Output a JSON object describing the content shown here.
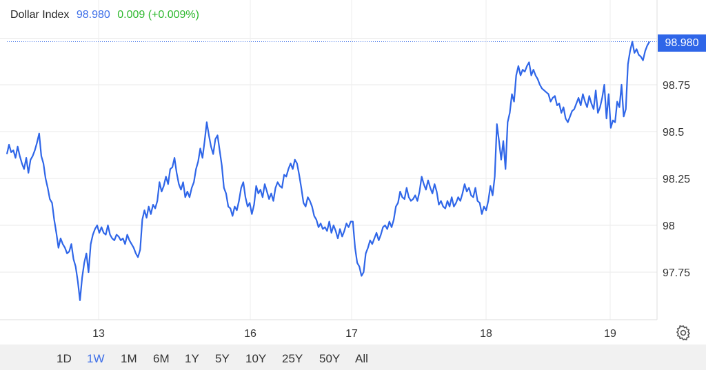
{
  "header": {
    "name": "Dollar Index",
    "value": "98.980",
    "change": "0.009 (+0.009%)"
  },
  "price_tag": "98.980",
  "colors": {
    "line": "#2f66e8",
    "up": "#2eb82e",
    "grid": "#e6e6e6"
  },
  "range_buttons": [
    {
      "label": "1D",
      "active": false
    },
    {
      "label": "1W",
      "active": true
    },
    {
      "label": "1M",
      "active": false
    },
    {
      "label": "6M",
      "active": false
    },
    {
      "label": "1Y",
      "active": false
    },
    {
      "label": "5Y",
      "active": false
    },
    {
      "label": "10Y",
      "active": false
    },
    {
      "label": "25Y",
      "active": false
    },
    {
      "label": "50Y",
      "active": false
    },
    {
      "label": "All",
      "active": false
    }
  ],
  "icons": {
    "settings": "gear-icon"
  },
  "chart_data": {
    "type": "line",
    "title": "",
    "xlabel": "",
    "ylabel": "",
    "x_ticks": [
      "13",
      "16",
      "17",
      "18",
      "19"
    ],
    "y_ticks": [
      97.75,
      98,
      98.25,
      98.5,
      98.75
    ],
    "ylim": [
      97.5,
      99.0
    ],
    "grid": true,
    "current_value": 98.98,
    "series": [
      {
        "values": [
          98.38,
          98.43,
          98.39,
          98.4,
          98.36,
          98.42,
          98.37,
          98.33,
          98.3,
          98.36,
          98.28,
          98.35,
          98.37,
          98.4,
          98.44,
          98.49,
          98.37,
          98.33,
          98.25,
          98.2,
          98.14,
          98.12,
          98.03,
          97.96,
          97.88,
          97.93,
          97.9,
          97.88,
          97.85,
          97.86,
          97.9,
          97.82,
          97.78,
          97.7,
          97.6,
          97.72,
          97.8,
          97.85,
          97.75,
          97.9,
          97.95,
          97.98,
          98.0,
          97.96,
          97.99,
          97.96,
          97.95,
          98.0,
          97.95,
          97.93,
          97.92,
          97.95,
          97.94,
          97.92,
          97.93,
          97.9,
          97.95,
          97.92,
          97.9,
          97.88,
          97.85,
          97.83,
          97.87,
          98.03,
          98.08,
          98.04,
          98.1,
          98.06,
          98.11,
          98.09,
          98.13,
          98.23,
          98.18,
          98.21,
          98.26,
          98.22,
          98.3,
          98.31,
          98.36,
          98.28,
          98.22,
          98.19,
          98.23,
          98.15,
          98.18,
          98.15,
          98.2,
          98.23,
          98.3,
          98.34,
          98.41,
          98.36,
          98.45,
          98.55,
          98.48,
          98.42,
          98.38,
          98.46,
          98.48,
          98.4,
          98.32,
          98.2,
          98.17,
          98.1,
          98.09,
          98.05,
          98.1,
          98.08,
          98.13,
          98.2,
          98.23,
          98.15,
          98.1,
          98.12,
          98.06,
          98.11,
          98.21,
          98.17,
          98.19,
          98.15,
          98.22,
          98.18,
          98.14,
          98.17,
          98.13,
          98.2,
          98.23,
          98.21,
          98.2,
          98.27,
          98.26,
          98.3,
          98.33,
          98.3,
          98.35,
          98.33,
          98.27,
          98.2,
          98.12,
          98.1,
          98.15,
          98.13,
          98.1,
          98.05,
          98.03,
          97.99,
          98.01,
          97.98,
          97.99,
          97.97,
          98.02,
          97.96,
          98.0,
          97.97,
          97.93,
          97.98,
          97.94,
          97.97,
          98.01,
          97.99,
          98.02,
          98.02,
          97.88,
          97.8,
          97.78,
          97.73,
          97.75,
          97.85,
          97.88,
          97.92,
          97.9,
          97.93,
          97.96,
          97.92,
          97.95,
          97.99,
          98.0,
          97.98,
          98.02,
          97.99,
          98.03,
          98.1,
          98.12,
          98.18,
          98.15,
          98.14,
          98.2,
          98.15,
          98.13,
          98.14,
          98.16,
          98.13,
          98.18,
          98.26,
          98.22,
          98.19,
          98.24,
          98.2,
          98.17,
          98.22,
          98.18,
          98.11,
          98.13,
          98.1,
          98.09,
          98.13,
          98.1,
          98.15,
          98.1,
          98.12,
          98.15,
          98.13,
          98.17,
          98.22,
          98.18,
          98.2,
          98.16,
          98.15,
          98.2,
          98.13,
          98.12,
          98.06,
          98.1,
          98.08,
          98.13,
          98.21,
          98.16,
          98.26,
          98.54,
          98.45,
          98.35,
          98.45,
          98.3,
          98.55,
          98.6,
          98.7,
          98.66,
          98.8,
          98.85,
          98.8,
          98.83,
          98.82,
          98.85,
          98.87,
          98.8,
          98.83,
          98.8,
          98.78,
          98.75,
          98.73,
          98.72,
          98.71,
          98.7,
          98.66,
          98.68,
          98.69,
          98.64,
          98.65,
          98.6,
          98.63,
          98.57,
          98.55,
          98.58,
          98.61,
          98.62,
          98.65,
          98.68,
          98.64,
          98.7,
          98.66,
          98.63,
          98.69,
          98.65,
          98.62,
          98.72,
          98.6,
          98.63,
          98.68,
          98.75,
          98.57,
          98.7,
          98.52,
          98.56,
          98.55,
          98.66,
          98.63,
          98.75,
          98.58,
          98.62,
          98.86,
          98.93,
          98.98,
          98.92,
          98.94,
          98.91,
          98.9,
          98.88,
          98.93,
          98.96,
          98.98
        ]
      }
    ]
  }
}
